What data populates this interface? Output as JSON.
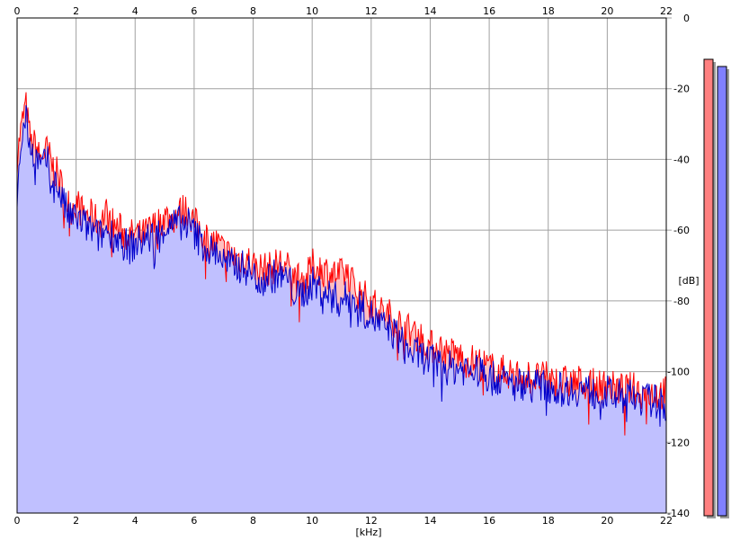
{
  "chart_data": {
    "type": "area",
    "title": "",
    "xlabel": "[kHz]",
    "ylabel": "[dB]",
    "xlim": [
      0,
      22
    ],
    "ylim": [
      -140,
      0
    ],
    "x_ticks": [
      "0",
      "2",
      "4",
      "6",
      "8",
      "10",
      "12",
      "14",
      "16",
      "18",
      "20",
      "22"
    ],
    "y_ticks": [
      "0",
      "-20",
      "-40",
      "-60",
      "-80",
      "-100",
      "-120",
      "-140"
    ],
    "grid": true,
    "series": [
      {
        "color": "#ff0000",
        "fill": "#ffc0c0",
        "x": [
          0,
          0.1,
          0.2,
          0.3,
          0.4,
          0.5,
          0.6,
          0.8,
          1.0,
          1.2,
          1.4,
          1.6,
          1.8,
          2.0,
          2.2,
          2.5,
          2.8,
          3.0,
          3.2,
          3.5,
          3.8,
          4.0,
          4.2,
          4.5,
          4.8,
          5.0,
          5.2,
          5.5,
          5.8,
          6.0,
          6.2,
          6.5,
          6.8,
          7.0,
          7.2,
          7.5,
          7.8,
          8.0,
          8.3,
          8.6,
          8.9,
          9.2,
          9.5,
          9.8,
          10.0,
          10.3,
          10.6,
          10.9,
          11.2,
          11.5,
          11.8,
          12.0,
          12.3,
          12.6,
          12.9,
          13.2,
          13.5,
          13.8,
          14.0,
          14.3,
          14.6,
          14.9,
          15.2,
          15.5,
          15.8,
          16.0,
          16.3,
          16.6,
          16.9,
          17.2,
          17.5,
          17.8,
          18.0,
          18.3,
          18.6,
          18.9,
          19.2,
          19.5,
          19.8,
          20.0,
          20.3,
          20.6,
          20.9,
          21.2,
          21.5,
          21.8,
          22.0
        ],
        "values": [
          -40,
          -33,
          -28,
          -24,
          -31,
          -36,
          -35,
          -40,
          -37,
          -42,
          -45,
          -50,
          -54,
          -52,
          -55,
          -56,
          -58,
          -55,
          -58,
          -60,
          -62,
          -61,
          -62,
          -60,
          -58,
          -56,
          -57,
          -55,
          -54,
          -58,
          -60,
          -63,
          -64,
          -66,
          -67,
          -68,
          -68,
          -70,
          -71,
          -71,
          -69,
          -71,
          -74,
          -74,
          -70,
          -71,
          -72,
          -73,
          -72,
          -77,
          -79,
          -80,
          -83,
          -84,
          -86,
          -88,
          -89,
          -91,
          -93,
          -93,
          -95,
          -95,
          -97,
          -97,
          -98,
          -99,
          -100,
          -100,
          -101,
          -101,
          -102,
          -102,
          -102,
          -103,
          -103,
          -103,
          -103,
          -104,
          -104,
          -104,
          -105,
          -105,
          -105,
          -106,
          -106,
          -106,
          -106
        ]
      },
      {
        "color": "#0000cc",
        "fill": "#c0c0ff",
        "x": [
          0,
          0.1,
          0.2,
          0.3,
          0.4,
          0.5,
          0.6,
          0.8,
          1.0,
          1.2,
          1.4,
          1.6,
          1.8,
          2.0,
          2.2,
          2.5,
          2.8,
          3.0,
          3.2,
          3.5,
          3.8,
          4.0,
          4.2,
          4.5,
          4.8,
          5.0,
          5.2,
          5.5,
          5.8,
          6.0,
          6.2,
          6.5,
          6.8,
          7.0,
          7.2,
          7.5,
          7.8,
          8.0,
          8.3,
          8.6,
          8.9,
          9.2,
          9.5,
          9.8,
          10.0,
          10.3,
          10.6,
          10.9,
          11.2,
          11.5,
          11.8,
          12.0,
          12.3,
          12.6,
          12.9,
          13.2,
          13.5,
          13.8,
          14.0,
          14.3,
          14.6,
          14.9,
          15.2,
          15.5,
          15.8,
          16.0,
          16.3,
          16.6,
          16.9,
          17.2,
          17.5,
          17.8,
          18.0,
          18.3,
          18.6,
          18.9,
          19.2,
          19.5,
          19.8,
          20.0,
          20.3,
          20.6,
          20.9,
          21.2,
          21.5,
          21.8,
          22.0
        ],
        "values": [
          -55,
          -38,
          -32,
          -28,
          -34,
          -38,
          -38,
          -42,
          -40,
          -46,
          -48,
          -53,
          -57,
          -56,
          -58,
          -60,
          -62,
          -60,
          -61,
          -63,
          -65,
          -64,
          -63,
          -62,
          -61,
          -59,
          -59,
          -58,
          -58,
          -61,
          -63,
          -66,
          -66,
          -69,
          -70,
          -70,
          -71,
          -73,
          -74,
          -73,
          -73,
          -74,
          -79,
          -77,
          -75,
          -77,
          -78,
          -80,
          -79,
          -80,
          -83,
          -84,
          -87,
          -88,
          -90,
          -94,
          -95,
          -96,
          -97,
          -98,
          -99,
          -99,
          -99,
          -100,
          -100,
          -102,
          -102,
          -103,
          -104,
          -103,
          -104,
          -104,
          -104,
          -105,
          -105,
          -105,
          -105,
          -106,
          -106,
          -106,
          -107,
          -107,
          -107,
          -108,
          -108,
          -109,
          -110
        ]
      }
    ],
    "level_meters": [
      {
        "color": "#ff8080"
      },
      {
        "color": "#8080ff"
      }
    ]
  }
}
